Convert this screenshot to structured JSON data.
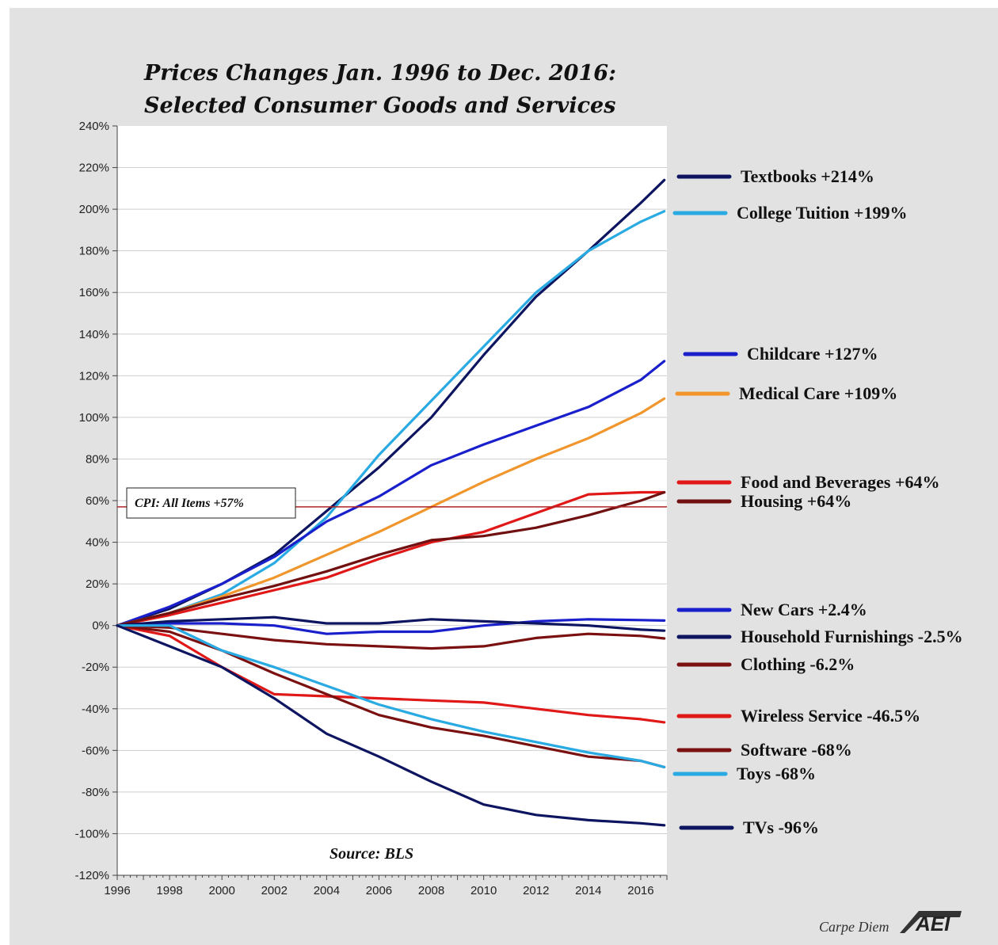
{
  "chart_data": {
    "type": "line",
    "title": "Prices Changes Jan. 1996 to Dec. 2016:",
    "subtitle": "Selected Consumer Goods and Services",
    "xlabel": "",
    "ylabel": "",
    "xlim": [
      1996,
      2017
    ],
    "ylim": [
      -120,
      240
    ],
    "x_ticks": [
      "1996",
      "1998",
      "2000",
      "2002",
      "2004",
      "2006",
      "2008",
      "2010",
      "2012",
      "2014",
      "2016"
    ],
    "y_ticks": [
      "240%",
      "220%",
      "200%",
      "180%",
      "160%",
      "140%",
      "120%",
      "100%",
      "80%",
      "60%",
      "40%",
      "20%",
      "0%",
      "-20%",
      "-40%",
      "-60%",
      "-80%",
      "-100%",
      "-120%"
    ],
    "reference_line": {
      "value": 57,
      "label": "CPI: All Items +57%",
      "color": "#b22222"
    },
    "source": "Source: BLS",
    "brand_text": "Carpe Diem",
    "brand_logo": "AEI",
    "series": [
      {
        "name": "Textbooks +214%",
        "color": "#0d1560",
        "points": [
          [
            1996,
            0
          ],
          [
            1998,
            8
          ],
          [
            2000,
            20
          ],
          [
            2002,
            34
          ],
          [
            2004,
            55
          ],
          [
            2006,
            76
          ],
          [
            2008,
            100
          ],
          [
            2010,
            130
          ],
          [
            2012,
            158
          ],
          [
            2014,
            180
          ],
          [
            2016,
            203
          ],
          [
            2016.9,
            214
          ]
        ]
      },
      {
        "name": "College Tuition +199%",
        "color": "#29aae2",
        "points": [
          [
            1996,
            0
          ],
          [
            1998,
            6
          ],
          [
            2000,
            15
          ],
          [
            2002,
            30
          ],
          [
            2004,
            52
          ],
          [
            2006,
            82
          ],
          [
            2008,
            108
          ],
          [
            2010,
            134
          ],
          [
            2012,
            160
          ],
          [
            2014,
            180
          ],
          [
            2016,
            194
          ],
          [
            2016.9,
            199
          ]
        ]
      },
      {
        "name": "Childcare +127%",
        "color": "#1a1fcc",
        "points": [
          [
            1996,
            0
          ],
          [
            1998,
            9
          ],
          [
            2000,
            20
          ],
          [
            2002,
            33
          ],
          [
            2004,
            50
          ],
          [
            2006,
            62
          ],
          [
            2008,
            77
          ],
          [
            2010,
            87
          ],
          [
            2012,
            96
          ],
          [
            2014,
            105
          ],
          [
            2016,
            118
          ],
          [
            2016.9,
            127
          ]
        ]
      },
      {
        "name": "Medical Care +109%",
        "color": "#f0962c",
        "points": [
          [
            1996,
            0
          ],
          [
            1998,
            6
          ],
          [
            2000,
            14
          ],
          [
            2002,
            23
          ],
          [
            2004,
            34
          ],
          [
            2006,
            45
          ],
          [
            2008,
            57
          ],
          [
            2010,
            69
          ],
          [
            2012,
            80
          ],
          [
            2014,
            90
          ],
          [
            2016,
            102
          ],
          [
            2016.9,
            109
          ]
        ]
      },
      {
        "name": "Food and Beverages +64%",
        "color": "#e01818",
        "points": [
          [
            1996,
            0
          ],
          [
            1998,
            5
          ],
          [
            2000,
            11
          ],
          [
            2002,
            17
          ],
          [
            2004,
            23
          ],
          [
            2006,
            32
          ],
          [
            2008,
            40
          ],
          [
            2010,
            45
          ],
          [
            2012,
            54
          ],
          [
            2014,
            63
          ],
          [
            2016,
            64
          ],
          [
            2016.9,
            64
          ]
        ]
      },
      {
        "name": "Housing +64%",
        "color": "#701010",
        "points": [
          [
            1996,
            0
          ],
          [
            1998,
            6
          ],
          [
            2000,
            13
          ],
          [
            2002,
            19
          ],
          [
            2004,
            26
          ],
          [
            2006,
            34
          ],
          [
            2008,
            41
          ],
          [
            2010,
            43
          ],
          [
            2012,
            47
          ],
          [
            2014,
            53
          ],
          [
            2016,
            60
          ],
          [
            2016.9,
            64
          ]
        ]
      },
      {
        "name": "New Cars +2.4%",
        "color": "#1a1fcc",
        "points": [
          [
            1996,
            0
          ],
          [
            1998,
            1
          ],
          [
            2000,
            1
          ],
          [
            2002,
            0
          ],
          [
            2004,
            -4
          ],
          [
            2006,
            -3
          ],
          [
            2008,
            -3
          ],
          [
            2010,
            0
          ],
          [
            2012,
            2
          ],
          [
            2014,
            3
          ],
          [
            2016,
            2.6
          ],
          [
            2016.9,
            2.4
          ]
        ]
      },
      {
        "name": "Household Furnishings -2.5%",
        "color": "#0d1560",
        "points": [
          [
            1996,
            0
          ],
          [
            1998,
            2
          ],
          [
            2000,
            3
          ],
          [
            2002,
            4
          ],
          [
            2004,
            1
          ],
          [
            2006,
            1
          ],
          [
            2008,
            3
          ],
          [
            2010,
            2
          ],
          [
            2012,
            1
          ],
          [
            2014,
            0
          ],
          [
            2016,
            -2
          ],
          [
            2016.9,
            -2.5
          ]
        ]
      },
      {
        "name": "Clothing -6.2%",
        "color": "#7a1010",
        "points": [
          [
            1996,
            0
          ],
          [
            1998,
            -1
          ],
          [
            2000,
            -4
          ],
          [
            2002,
            -7
          ],
          [
            2004,
            -9
          ],
          [
            2006,
            -10
          ],
          [
            2008,
            -11
          ],
          [
            2010,
            -10
          ],
          [
            2012,
            -6
          ],
          [
            2014,
            -4
          ],
          [
            2016,
            -5
          ],
          [
            2016.9,
            -6.2
          ]
        ]
      },
      {
        "name": "Wireless Service -46.5%",
        "color": "#e01818",
        "points": [
          [
            1996,
            0
          ],
          [
            1998,
            -5
          ],
          [
            2000,
            -20
          ],
          [
            2002,
            -33
          ],
          [
            2004,
            -34
          ],
          [
            2006,
            -35
          ],
          [
            2008,
            -36
          ],
          [
            2010,
            -37
          ],
          [
            2012,
            -40
          ],
          [
            2014,
            -43
          ],
          [
            2016,
            -45
          ],
          [
            2016.9,
            -46.5
          ]
        ]
      },
      {
        "name": "Software -68%",
        "color": "#7a1010",
        "points": [
          [
            1996,
            0
          ],
          [
            1998,
            -3
          ],
          [
            2000,
            -12
          ],
          [
            2002,
            -23
          ],
          [
            2004,
            -33
          ],
          [
            2006,
            -43
          ],
          [
            2008,
            -49
          ],
          [
            2010,
            -53
          ],
          [
            2012,
            -58
          ],
          [
            2014,
            -63
          ],
          [
            2016,
            -65
          ],
          [
            2016.9,
            -68
          ]
        ]
      },
      {
        "name": "Toys -68%",
        "color": "#29aae2",
        "points": [
          [
            1996,
            0
          ],
          [
            1998,
            0
          ],
          [
            2000,
            -12
          ],
          [
            2002,
            -20
          ],
          [
            2004,
            -29
          ],
          [
            2006,
            -38
          ],
          [
            2008,
            -45
          ],
          [
            2010,
            -51
          ],
          [
            2012,
            -56
          ],
          [
            2014,
            -61
          ],
          [
            2016,
            -65
          ],
          [
            2016.9,
            -68
          ]
        ]
      },
      {
        "name": "TVs -96%",
        "color": "#0d1560",
        "points": [
          [
            1996,
            0
          ],
          [
            1998,
            -10
          ],
          [
            2000,
            -20
          ],
          [
            2002,
            -35
          ],
          [
            2004,
            -52
          ],
          [
            2006,
            -63
          ],
          [
            2008,
            -75
          ],
          [
            2010,
            -86
          ],
          [
            2012,
            -91
          ],
          [
            2014,
            -93.5
          ],
          [
            2016,
            -95
          ],
          [
            2016.9,
            -96
          ]
        ]
      }
    ]
  }
}
